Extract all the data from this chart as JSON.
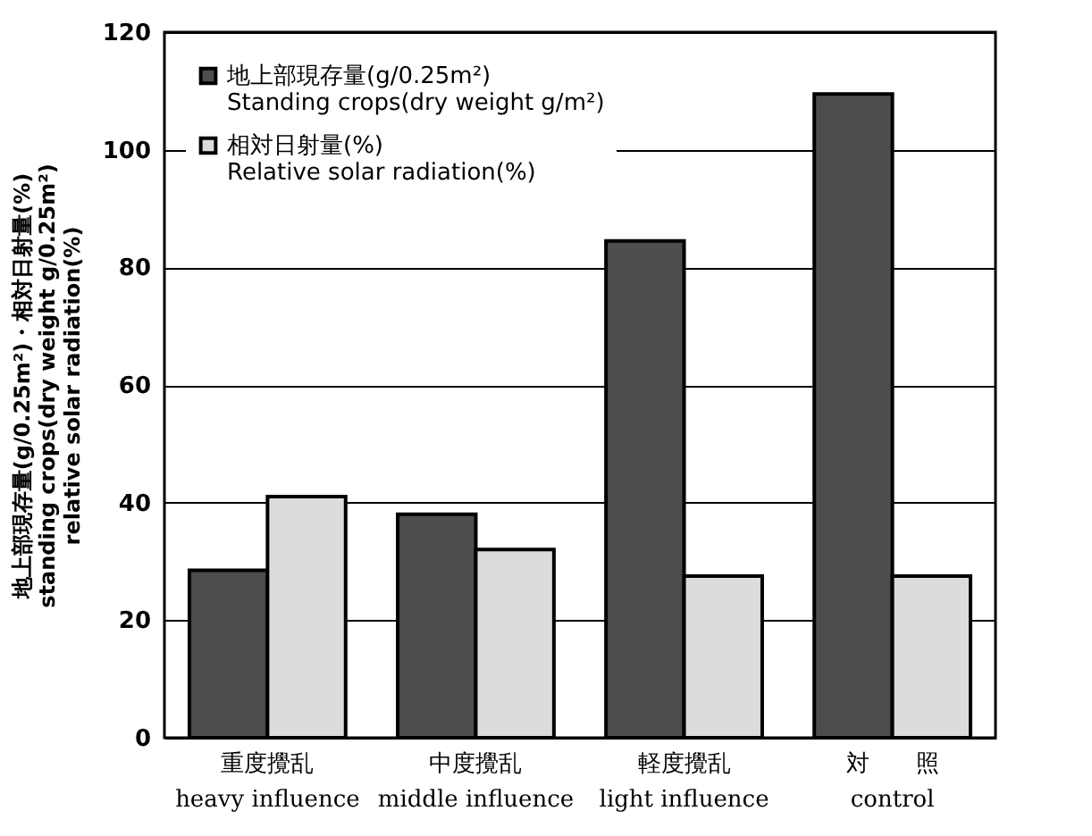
{
  "chart_data": {
    "type": "bar",
    "categories": [
      "重度攪乱\nheavy influence",
      "中度攪乱\nmiddle influence",
      "軽度攪乱\nlight influence",
      "対　　照\ncontrol"
    ],
    "series": [
      {
        "name": "地上部現存量(g/0.25m²)\nStanding crops(dry weight g/m²)",
        "color": "#4d4d4d",
        "values": [
          28.5,
          38,
          84.5,
          109.5
        ]
      },
      {
        "name": "相対日射量(%)\nRelative solar radiation(%)",
        "color": "#dcdcdc",
        "values": [
          41,
          32,
          27.5,
          27.5
        ]
      }
    ],
    "ylabel": "地上部現存量(g/0.25m²)・相対日射量(%)\nstanding crops(dry weight g/0.25m²)\nrelative solar radiation(%)",
    "ylim": [
      0,
      120
    ],
    "yticks": [
      0,
      20,
      40,
      60,
      80,
      100,
      120
    ],
    "grid": "y",
    "legend": "top left"
  }
}
